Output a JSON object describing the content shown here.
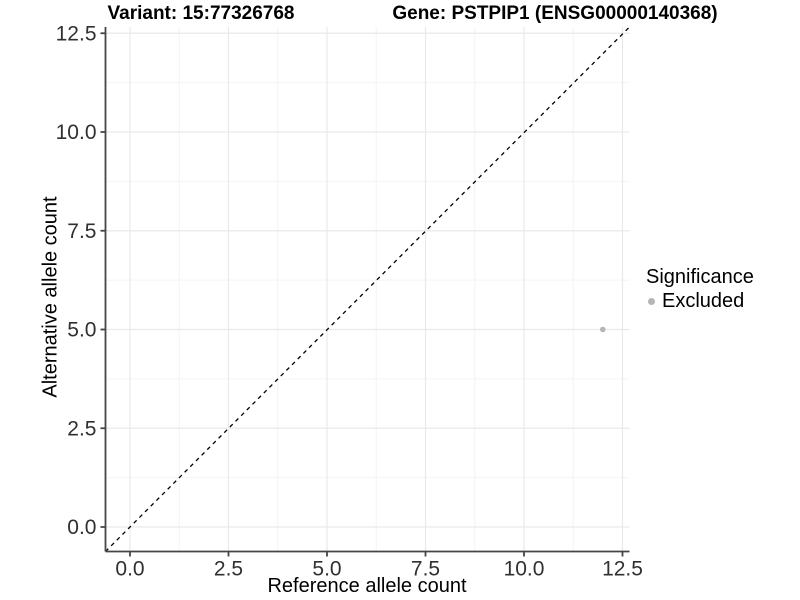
{
  "chart_data": {
    "type": "scatter",
    "title_left": "Variant: 15:77326768",
    "title_right": "Gene: PSTPIP1 (ENSG00000140368)",
    "xlabel": "Reference allele count",
    "ylabel": "Alternative allele count",
    "x_ticks": [
      0.0,
      2.5,
      5.0,
      7.5,
      10.0,
      12.5
    ],
    "y_ticks": [
      0.0,
      2.5,
      5.0,
      7.5,
      10.0,
      12.5
    ],
    "xlim": [
      -0.62,
      12.68
    ],
    "ylim": [
      -0.62,
      12.68
    ],
    "tick_decimals": 1,
    "grid": {
      "major": true,
      "minor": true
    },
    "reference_line": {
      "type": "identity_y_equals_x",
      "style": "dashed",
      "color": "#000000"
    },
    "series": [
      {
        "name": "Excluded",
        "color": "#b5b5b5",
        "points": [
          {
            "x": 12,
            "y": 5
          }
        ]
      }
    ],
    "legend": {
      "title": "Significance",
      "position": "right",
      "entries": [
        {
          "label": "Excluded",
          "color": "#b5b5b5"
        }
      ]
    }
  },
  "colors": {
    "background": "#ffffff",
    "axis_line": "#454545",
    "tick_label": "#303030",
    "grid_major": "#e9e9e9",
    "grid_minor": "#f4f4f4"
  }
}
